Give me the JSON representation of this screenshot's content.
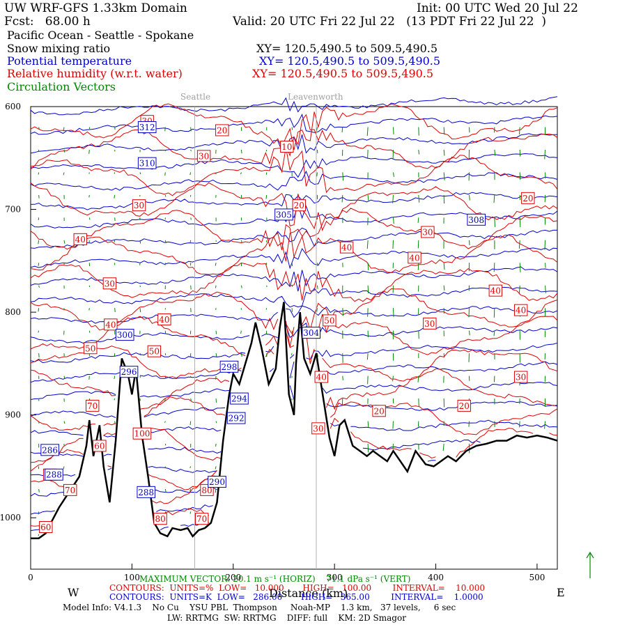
{
  "header": {
    "domain": "UW WRF-GFS 1.33km Domain",
    "init": "Init: 00 UTC Wed 20 Jul 22",
    "fcst": "Fcst:   68.00 h",
    "valid": "Valid: 20 UTC Fri 22 Jul 22   (13 PDT Fri 22 Jul 22  )",
    "region": "Pacific Ocean - Seattle - Spokane"
  },
  "fields": [
    {
      "name": "Snow mixing ratio",
      "xy": "XY= 120.5,490.5 to 509.5,490.5",
      "color": "#000000"
    },
    {
      "name": "Potential temperature",
      "xy": "XY= 120.5,490.5 to 509.5,490.5",
      "color": "#0000cc"
    },
    {
      "name": "Relative humidity (w.r.t. water)",
      "xy": "XY= 120.5,490.5 to 509.5,490.5",
      "color": "#dd0000"
    },
    {
      "name": "Circulation Vectors",
      "xy": "",
      "color": "#008800"
    }
  ],
  "landmarks": [
    "Seattle",
    "Leavenworth"
  ],
  "footer": {
    "w": "W",
    "e": "E",
    "xlabel": "Distance (km)",
    "maxvec": "MAXIMUM VECTOR: 20.1 m s⁻¹ (HORIZ)    71.1 dPa s⁻¹ (VERT)",
    "rh_contours": "CONTOURS:  UNITS=%  LOW=   10.000       HIGH=   100.00        INTERVAL=    10.000",
    "th_contours": "CONTOURS:  UNITS=K  LOW=   286.00       HIGH=   365.00        INTERVAL=    1.0000",
    "model": "Model Info: V4.1.3    No Cu    YSU PBL  Thompson     Noah-MP    1.3 km,   37 levels,     6 sec",
    "physics": "LW: RRTMG  SW: RRTMG    DIFF: full    KM: 2D Smagor"
  },
  "chart_data": {
    "type": "line",
    "title": "",
    "xlabel": "Distance (km)",
    "ylabel": "",
    "xlim": [
      0,
      520
    ],
    "ylim": [
      1050,
      600
    ],
    "x_ticks": [
      0,
      100,
      200,
      300,
      400,
      500
    ],
    "y_ticks": [
      600,
      700,
      800,
      900,
      1000
    ],
    "x_tick_labels": [
      "0",
      "100",
      "200",
      "300",
      "400",
      "500"
    ],
    "y_tick_labels": [
      "600",
      "700",
      "800",
      "900",
      "1000"
    ],
    "landmark_x_km": [
      162,
      282
    ],
    "terrain": {
      "name": "Terrain",
      "x": [
        0,
        8,
        15,
        20,
        28,
        38,
        48,
        55,
        58,
        62,
        68,
        72,
        78,
        84,
        90,
        96,
        100,
        104,
        110,
        116,
        122,
        128,
        135,
        140,
        148,
        155,
        160,
        166,
        172,
        178,
        184,
        190,
        196,
        200,
        206,
        212,
        218,
        222,
        228,
        235,
        242,
        246,
        250,
        255,
        260,
        262,
        266,
        270,
        276,
        282,
        288,
        295,
        300,
        305,
        310,
        318,
        325,
        332,
        338,
        345,
        352,
        358,
        365,
        372,
        380,
        390,
        398,
        405,
        412,
        420,
        430,
        440,
        450,
        460,
        470,
        480,
        490,
        500,
        510,
        520
      ],
      "p": [
        1020,
        1020,
        1015,
        1005,
        990,
        975,
        960,
        930,
        905,
        940,
        910,
        950,
        985,
        925,
        845,
        860,
        880,
        855,
        920,
        960,
        1005,
        1015,
        1018,
        1010,
        1012,
        1010,
        1018,
        1012,
        1010,
        1005,
        985,
        925,
        880,
        860,
        870,
        850,
        830,
        810,
        835,
        870,
        855,
        815,
        790,
        880,
        900,
        850,
        800,
        845,
        860,
        840,
        878,
        922,
        940,
        910,
        905,
        930,
        935,
        940,
        935,
        940,
        945,
        935,
        945,
        955,
        935,
        948,
        950,
        945,
        940,
        945,
        935,
        930,
        928,
        925,
        925,
        920,
        922,
        920,
        922,
        925
      ]
    },
    "potential_temperature_labels": [
      {
        "x": 115,
        "p": 620,
        "v": "312"
      },
      {
        "x": 115,
        "p": 655,
        "v": "310"
      },
      {
        "x": 250,
        "p": 705,
        "v": "305"
      },
      {
        "x": 440,
        "p": 710,
        "v": "308"
      },
      {
        "x": 93,
        "p": 822,
        "v": "300"
      },
      {
        "x": 196,
        "p": 853,
        "v": "298"
      },
      {
        "x": 277,
        "p": 820,
        "v": "304"
      },
      {
        "x": 206,
        "p": 884,
        "v": "294"
      },
      {
        "x": 203,
        "p": 903,
        "v": "292"
      },
      {
        "x": 97,
        "p": 858,
        "v": "296"
      },
      {
        "x": 19,
        "p": 934,
        "v": "286"
      },
      {
        "x": 23,
        "p": 958,
        "v": "288"
      },
      {
        "x": 114,
        "p": 975,
        "v": "288"
      },
      {
        "x": 184,
        "p": 965,
        "v": "290"
      }
    ],
    "relative_humidity_labels": [
      {
        "x": 115,
        "p": 614,
        "v": "30"
      },
      {
        "x": 189,
        "p": 623,
        "v": "20"
      },
      {
        "x": 171,
        "p": 648,
        "v": "30"
      },
      {
        "x": 253,
        "p": 639,
        "v": "10"
      },
      {
        "x": 265,
        "p": 696,
        "v": "20"
      },
      {
        "x": 107,
        "p": 696,
        "v": "30"
      },
      {
        "x": 49,
        "p": 729,
        "v": "40"
      },
      {
        "x": 312,
        "p": 737,
        "v": "40"
      },
      {
        "x": 392,
        "p": 722,
        "v": "30"
      },
      {
        "x": 379,
        "p": 747,
        "v": "40"
      },
      {
        "x": 491,
        "p": 689,
        "v": "20"
      },
      {
        "x": 459,
        "p": 779,
        "v": "40"
      },
      {
        "x": 484,
        "p": 798,
        "v": "40"
      },
      {
        "x": 78,
        "p": 772,
        "v": "30"
      },
      {
        "x": 132,
        "p": 807,
        "v": "40"
      },
      {
        "x": 79,
        "p": 812,
        "v": "40"
      },
      {
        "x": 122,
        "p": 838,
        "v": "50"
      },
      {
        "x": 59,
        "p": 835,
        "v": "50"
      },
      {
        "x": 295,
        "p": 808,
        "v": "50"
      },
      {
        "x": 394,
        "p": 811,
        "v": "30"
      },
      {
        "x": 484,
        "p": 863,
        "v": "30"
      },
      {
        "x": 287,
        "p": 863,
        "v": "40"
      },
      {
        "x": 428,
        "p": 891,
        "v": "20"
      },
      {
        "x": 344,
        "p": 896,
        "v": "20"
      },
      {
        "x": 61,
        "p": 891,
        "v": "70"
      },
      {
        "x": 110,
        "p": 918,
        "v": "100"
      },
      {
        "x": 68,
        "p": 930,
        "v": "60"
      },
      {
        "x": 19,
        "p": 958,
        "v": "90"
      },
      {
        "x": 39,
        "p": 973,
        "v": "70"
      },
      {
        "x": 284,
        "p": 913,
        "v": "30"
      },
      {
        "x": 174,
        "p": 973,
        "v": "80"
      },
      {
        "x": 128,
        "p": 1001,
        "v": "80"
      },
      {
        "x": 169,
        "p": 1001,
        "v": "70"
      },
      {
        "x": 15,
        "p": 1009,
        "v": "60"
      }
    ]
  }
}
